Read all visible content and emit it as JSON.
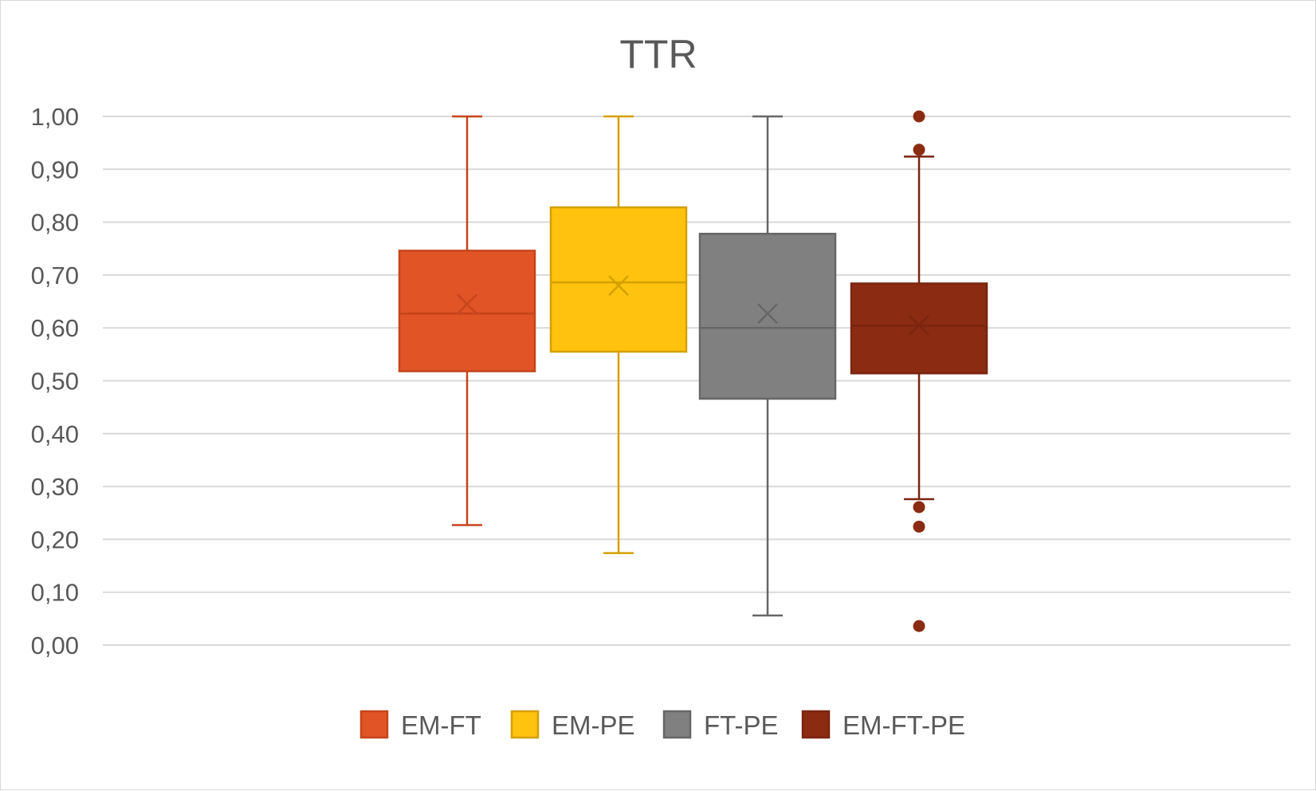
{
  "chart_data": {
    "type": "boxplot",
    "title": "TTR",
    "xlabel": "",
    "ylabel": "",
    "ylim": [
      0,
      1
    ],
    "y_ticks": [
      "0,00",
      "0,10",
      "0,20",
      "0,30",
      "0,40",
      "0,50",
      "0,60",
      "0,70",
      "0,80",
      "0,90",
      "1,00"
    ],
    "y_tick_values": [
      0,
      0.1,
      0.2,
      0.3,
      0.4,
      0.5,
      0.6,
      0.7,
      0.8,
      0.9,
      1.0
    ],
    "grid": true,
    "legend_position": "bottom",
    "series": [
      {
        "name": "EM-FT",
        "color": "#E05426",
        "whisker_color": "#C5451C",
        "min": 0.227,
        "q1": 0.518,
        "median": 0.627,
        "mean": 0.645,
        "q3": 0.746,
        "max": 1.0,
        "outliers": []
      },
      {
        "name": "EM-PE",
        "color": "#FFC20E",
        "whisker_color": "#D4A000",
        "min": 0.174,
        "q1": 0.555,
        "median": 0.686,
        "mean": 0.68,
        "q3": 0.828,
        "max": 1.0,
        "outliers": []
      },
      {
        "name": "FT-PE",
        "color": "#808080",
        "whisker_color": "#666666",
        "min": 0.056,
        "q1": 0.466,
        "median": 0.6,
        "mean": 0.627,
        "q3": 0.778,
        "max": 1.0,
        "outliers": []
      },
      {
        "name": "EM-FT-PE",
        "color": "#8B2B12",
        "whisker_color": "#7A2510",
        "min": 0.276,
        "q1": 0.514,
        "median": 0.604,
        "mean": 0.605,
        "q3": 0.684,
        "max": 0.924,
        "outliers": [
          1.0,
          0.937,
          0.261,
          0.224,
          0.036
        ]
      }
    ]
  }
}
